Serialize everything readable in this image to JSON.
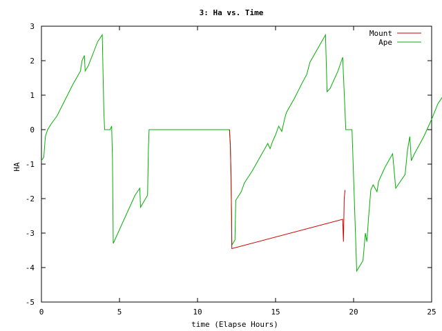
{
  "chart_data": {
    "type": "line",
    "title": "3: Ha vs. Time",
    "xlabel": "time (Elapse Hours)",
    "ylabel": "HA",
    "xlim": [
      0,
      25
    ],
    "ylim": [
      -5,
      3
    ],
    "xticks": [
      "0",
      "5",
      "10",
      "15",
      "20",
      "25"
    ],
    "yticks": [
      "-5",
      "-4",
      "-3",
      "-2",
      "-1",
      "0",
      "1",
      "2",
      "3"
    ],
    "grid": false,
    "legend_position": "top-right",
    "series": [
      {
        "name": "Mount",
        "color": "#cc0000",
        "points": [
          [
            12.05,
            0.0
          ],
          [
            12.1,
            -0.45
          ],
          [
            12.12,
            -0.8
          ],
          [
            12.15,
            -1.5
          ],
          [
            12.18,
            -2.5
          ],
          [
            12.2,
            -3.45
          ],
          [
            19.3,
            -2.6
          ],
          [
            19.35,
            -3.25
          ],
          [
            19.4,
            -2.0
          ],
          [
            19.45,
            -1.75
          ]
        ]
      },
      {
        "name": "Ape",
        "color": "#00b000",
        "points": [
          [
            0,
            -0.9
          ],
          [
            0.15,
            -0.8
          ],
          [
            0.25,
            -0.2
          ],
          [
            0.4,
            0.0
          ],
          [
            0.6,
            0.15
          ],
          [
            1.0,
            0.4
          ],
          [
            1.5,
            0.85
          ],
          [
            2.0,
            1.3
          ],
          [
            2.5,
            1.7
          ],
          [
            2.6,
            2.0
          ],
          [
            2.75,
            2.15
          ],
          [
            2.8,
            1.7
          ],
          [
            3.0,
            1.85
          ],
          [
            3.3,
            2.2
          ],
          [
            3.6,
            2.55
          ],
          [
            3.9,
            2.75
          ],
          [
            4.0,
            0.5
          ],
          [
            4.05,
            0.0
          ],
          [
            4.4,
            0.0
          ],
          [
            4.5,
            0.1
          ],
          [
            4.55,
            -0.8
          ],
          [
            4.6,
            -3.3
          ],
          [
            5.0,
            -2.9
          ],
          [
            5.5,
            -2.4
          ],
          [
            6.0,
            -1.9
          ],
          [
            6.3,
            -1.7
          ],
          [
            6.35,
            -2.25
          ],
          [
            6.8,
            -1.9
          ],
          [
            6.85,
            -0.6
          ],
          [
            6.9,
            0.0
          ],
          [
            12.05,
            0.0
          ],
          [
            12.1,
            -0.45
          ],
          [
            12.12,
            -0.8
          ],
          [
            12.15,
            -1.5
          ],
          [
            12.18,
            -2.55
          ],
          [
            12.2,
            -3.35
          ],
          [
            12.4,
            -3.2
          ],
          [
            12.45,
            -2.05
          ],
          [
            12.8,
            -1.8
          ],
          [
            13.0,
            -1.55
          ],
          [
            13.5,
            -1.2
          ],
          [
            14.0,
            -0.8
          ],
          [
            14.5,
            -0.4
          ],
          [
            14.65,
            -0.55
          ],
          [
            14.8,
            -0.35
          ],
          [
            15.0,
            -0.15
          ],
          [
            15.2,
            0.1
          ],
          [
            15.4,
            -0.05
          ],
          [
            15.6,
            0.35
          ],
          [
            15.7,
            0.5
          ],
          [
            16.2,
            0.9
          ],
          [
            16.7,
            1.35
          ],
          [
            17.0,
            1.6
          ],
          [
            17.2,
            1.95
          ],
          [
            17.7,
            2.35
          ],
          [
            18.2,
            2.75
          ],
          [
            18.3,
            1.1
          ],
          [
            18.5,
            1.2
          ],
          [
            19.0,
            1.7
          ],
          [
            19.3,
            2.1
          ],
          [
            19.5,
            0.0
          ],
          [
            19.9,
            0.0
          ],
          [
            20.2,
            -4.1
          ],
          [
            20.6,
            -3.8
          ],
          [
            20.75,
            -3.0
          ],
          [
            20.85,
            -3.25
          ],
          [
            20.95,
            -2.6
          ],
          [
            21.1,
            -1.75
          ],
          [
            21.25,
            -1.6
          ],
          [
            21.5,
            -1.8
          ],
          [
            21.6,
            -1.5
          ],
          [
            22.0,
            -1.1
          ],
          [
            22.5,
            -0.7
          ],
          [
            22.7,
            -1.7
          ],
          [
            23.3,
            -1.3
          ],
          [
            23.45,
            -0.6
          ],
          [
            23.6,
            -0.2
          ],
          [
            23.7,
            -0.9
          ],
          [
            23.9,
            -0.7
          ],
          [
            24.5,
            -0.2
          ],
          [
            25.0,
            0.3
          ],
          [
            25.4,
            0.75
          ],
          [
            25.7,
            0.95
          ]
        ]
      }
    ]
  }
}
